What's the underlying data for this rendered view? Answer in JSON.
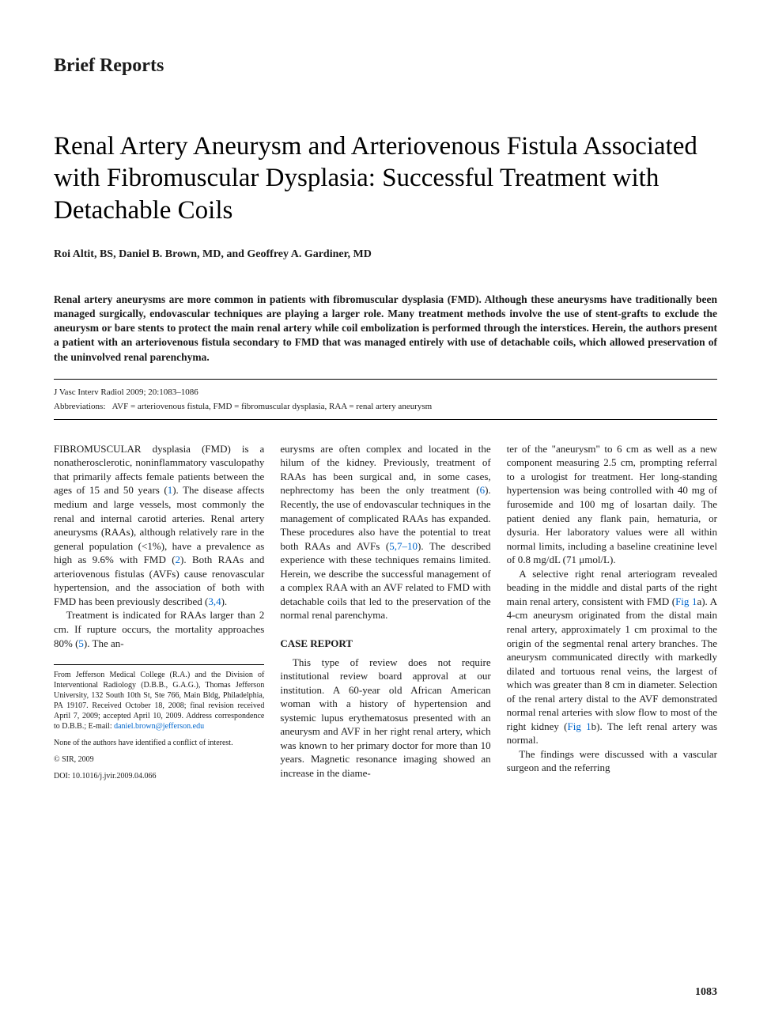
{
  "section_label": "Brief Reports",
  "title": "Renal Artery Aneurysm and Arteriovenous Fistula Associated with Fibromuscular Dysplasia: Successful Treatment with Detachable Coils",
  "authors": "Roi Altit, BS, Daniel B. Brown, MD, and Geoffrey A. Gardiner, MD",
  "abstract": "Renal artery aneurysms are more common in patients with fibromuscular dysplasia (FMD). Although these aneurysms have traditionally been managed surgically, endovascular techniques are playing a larger role. Many treatment methods involve the use of stent-grafts to exclude the aneurysm or bare stents to protect the main renal artery while coil embolization is performed through the interstices. Herein, the authors present a patient with an arteriovenous fistula secondary to FMD that was managed entirely with use of detachable coils, which allowed preservation of the uninvolved renal parenchyma.",
  "citation": "J Vasc Interv Radiol 2009; 20:1083–1086",
  "abbreviations_label": "Abbreviations:",
  "abbreviations_text": "AVF = arteriovenous fistula, FMD = fibromuscular dysplasia, RAA = renal artery aneurysm",
  "col1": {
    "p1_start": "FIBROMUSCULAR",
    "p1_rest": " dysplasia (FMD) is a nonatherosclerotic, noninflammatory vasculopathy that primarily affects female patients between the ages of 15 and 50 years (",
    "p1_ref1": "1",
    "p1_rest2": "). The disease affects medium and large vessels, most commonly the renal and internal carotid arteries. Renal artery aneurysms (RAAs), although relatively rare in the general population (<1%), have a prevalence as high as 9.6% with FMD (",
    "p1_ref2": "2",
    "p1_rest3": "). Both RAAs and arteriovenous fistulas (AVFs) cause renovascular hypertension, and the association of both with FMD has been previously described (",
    "p1_ref3": "3,4",
    "p1_rest4": ").",
    "p2_a": "Treatment is indicated for RAAs larger than 2 cm. If rupture occurs, the mortality approaches 80% (",
    "p2_ref": "5",
    "p2_b": "). The an-"
  },
  "affiliation": {
    "main": "From Jefferson Medical College (R.A.) and the Division of Interventional Radiology (D.B.B., G.A.G.), Thomas Jefferson University, 132 South 10th St, Ste 766, Main Bldg, Philadelphia, PA 19107. Received October 18, 2008; final revision received April 7, 2009; accepted April 10, 2009. Address correspondence to D.B.B.; E-mail: ",
    "email": "daniel.brown@jefferson.edu",
    "conflict": "None of the authors have identified a conflict of interest.",
    "copyright": "© SIR, 2009",
    "doi": "DOI: 10.1016/j.jvir.2009.04.066"
  },
  "col2": {
    "p1_a": "eurysms are often complex and located in the hilum of the kidney. Previously, treatment of RAAs has been surgical and, in some cases, nephrectomy has been the only treatment (",
    "p1_ref1": "6",
    "p1_b": "). Recently, the use of endovascular techniques in the management of complicated RAAs has expanded. These procedures also have the potential to treat both RAAs and AVFs (",
    "p1_ref2": "5,7–10",
    "p1_c": "). The described experience with these techniques remains limited. Herein, we describe the successful management of a complex RAA with an AVF related to FMD with detachable coils that led to the preservation of the normal renal parenchyma.",
    "case_heading": "CASE REPORT",
    "p2": "This type of review does not require institutional review board approval at our institution. A 60-year old African American woman with a history of hypertension and systemic lupus erythematosus presented with an aneurysm and AVF in her right renal artery, which was known to her primary doctor for more than 10 years. Magnetic resonance imaging showed an increase in the diame-"
  },
  "col3": {
    "p1": "ter of the \"aneurysm\" to 6 cm as well as a new component measuring 2.5 cm, prompting referral to a urologist for treatment. Her long-standing hypertension was being controlled with 40 mg of furosemide and 100 mg of losartan daily. The patient denied any flank pain, hematuria, or dysuria. Her laboratory values were all within normal limits, including a baseline creatinine level of 0.8 mg/dL (71 μmol/L).",
    "p2_a": "A selective right renal arteriogram revealed beading in the middle and distal parts of the right main renal artery, consistent with FMD (",
    "p2_ref1": "Fig 1",
    "p2_b": "a). A 4-cm aneurysm originated from the distal main renal artery, approximately 1 cm proximal to the origin of the segmental renal artery branches. The aneurysm communicated directly with markedly dilated and tortuous renal veins, the largest of which was greater than 8 cm in diameter. Selection of the renal artery distal to the AVF demonstrated normal renal arteries with slow flow to most of the right kidney (",
    "p2_ref2": "Fig 1",
    "p2_c": "b). The left renal artery was normal.",
    "p3": "The findings were discussed with a vascular surgeon and the referring"
  },
  "page_number": "1083"
}
